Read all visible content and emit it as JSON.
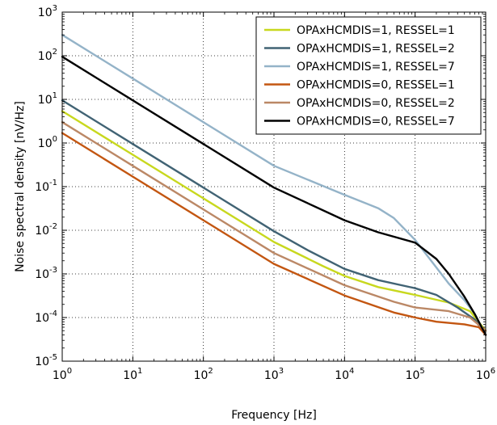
{
  "chart_data": {
    "type": "line",
    "xlabel": "Frequency [Hz]",
    "ylabel_prefix": "Noise spectral density [nV/",
    "ylabel_radicand": "Hz",
    "ylabel_suffix": "]",
    "x_scale": "log",
    "y_scale": "log",
    "xlim": [
      1,
      1000000
    ],
    "ylim": [
      1e-05,
      1000
    ],
    "grid": true,
    "legend_position": "top-right",
    "x_ticks": [
      {
        "value": 1,
        "base": "10",
        "exp": "0"
      },
      {
        "value": 10,
        "base": "10",
        "exp": "1"
      },
      {
        "value": 100,
        "base": "10",
        "exp": "2"
      },
      {
        "value": 1000,
        "base": "10",
        "exp": "3"
      },
      {
        "value": 10000,
        "base": "10",
        "exp": "4"
      },
      {
        "value": 100000,
        "base": "10",
        "exp": "5"
      },
      {
        "value": 1000000,
        "base": "10",
        "exp": "6"
      }
    ],
    "y_ticks": [
      {
        "value": 1000,
        "base": "10",
        "exp": "3"
      },
      {
        "value": 100,
        "base": "10",
        "exp": "2"
      },
      {
        "value": 10,
        "base": "10",
        "exp": "1"
      },
      {
        "value": 1,
        "base": "10",
        "exp": "0"
      },
      {
        "value": 0.1,
        "base": "10",
        "exp": "-1"
      },
      {
        "value": 0.01,
        "base": "10",
        "exp": "-2"
      },
      {
        "value": 0.001,
        "base": "10",
        "exp": "-3"
      },
      {
        "value": 0.0001,
        "base": "10",
        "exp": "-4"
      },
      {
        "value": 1e-05,
        "base": "10",
        "exp": "-5"
      }
    ],
    "series": [
      {
        "name": "OPAxHCMDIS=1, RESSEL=1",
        "color": "#c8d81e",
        "x": [
          1,
          10,
          100,
          1000,
          5000,
          10000,
          30000,
          100000,
          300000,
          600000,
          1000000
        ],
        "y": [
          5.4,
          0.54,
          0.054,
          0.0054,
          0.0015,
          0.0009,
          0.0005,
          0.00033,
          0.00022,
          0.00014,
          5e-05
        ]
      },
      {
        "name": "OPAxHCMDIS=1, RESSEL=2",
        "color": "#416374",
        "x": [
          1,
          10,
          100,
          1000,
          3000,
          10000,
          30000,
          100000,
          200000,
          400000,
          700000,
          1000000
        ],
        "y": [
          9.5,
          0.95,
          0.095,
          0.0095,
          0.0035,
          0.0013,
          0.00072,
          0.00047,
          0.00033,
          0.00017,
          9e-05,
          4e-05
        ]
      },
      {
        "name": "OPAxHCMDIS=1, RESSEL=7",
        "color": "#94b3c8",
        "x": [
          1,
          10,
          100,
          1000,
          10000,
          30000,
          50000,
          100000,
          200000,
          300000,
          500000,
          700000,
          1000000
        ],
        "y": [
          300,
          30,
          3.0,
          0.3,
          0.065,
          0.032,
          0.019,
          0.006,
          0.0014,
          0.0006,
          0.00025,
          0.00012,
          4e-05
        ]
      },
      {
        "name": "OPAxHCMDIS=0, RESSEL=1",
        "color": "#c35611",
        "x": [
          1,
          10,
          100,
          1000,
          10000,
          50000,
          100000,
          200000,
          500000,
          800000,
          1000000
        ],
        "y": [
          1.7,
          0.17,
          0.017,
          0.0017,
          0.00032,
          0.00013,
          0.0001,
          8e-05,
          7e-05,
          6e-05,
          4e-05
        ]
      },
      {
        "name": "OPAxHCMDIS=0, RESSEL=2",
        "color": "#bb8866",
        "x": [
          1,
          10,
          100,
          1000,
          10000,
          50000,
          100000,
          300000,
          600000,
          1000000
        ],
        "y": [
          3.0,
          0.3,
          0.03,
          0.003,
          0.00055,
          0.00023,
          0.00017,
          0.00014,
          0.0001,
          5e-05
        ]
      },
      {
        "name": "OPAxHCMDIS=0, RESSEL=7",
        "color": "#000000",
        "x": [
          1,
          10,
          100,
          1000,
          10000,
          30000,
          100000,
          200000,
          300000,
          500000,
          700000,
          1000000
        ],
        "y": [
          95,
          9.5,
          0.95,
          0.095,
          0.017,
          0.009,
          0.0052,
          0.0022,
          0.001,
          0.0003,
          0.00012,
          4e-05
        ]
      }
    ]
  }
}
